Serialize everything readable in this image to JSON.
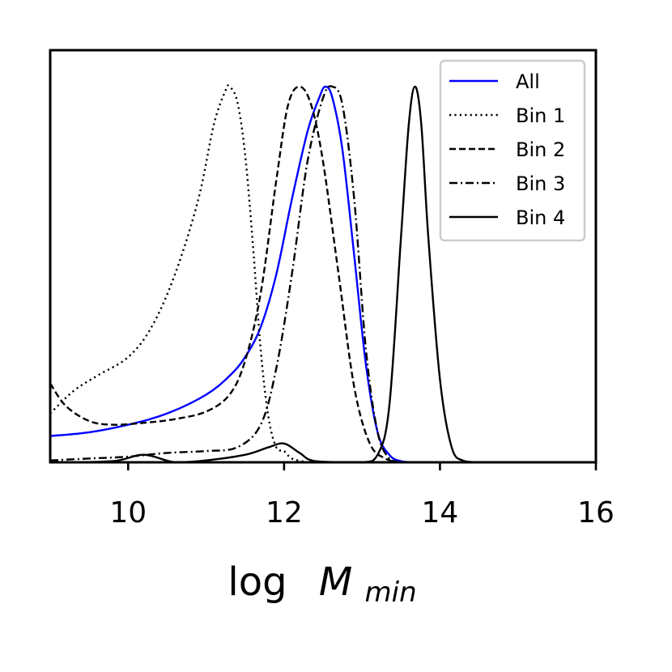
{
  "chart_data": {
    "type": "line",
    "title": "",
    "xlabel": "log",
    "xlabel_symbol": "M",
    "xlabel_subscript": "min",
    "ylabel": "",
    "xlim": [
      9,
      16
    ],
    "ylim": [
      0,
      1
    ],
    "xticks": [
      10,
      12,
      14,
      16
    ],
    "yticks_visible": false,
    "grid": false,
    "legend_position": "top-right",
    "series": [
      {
        "name": "All",
        "color": "#0000ff",
        "linestyle": "solid",
        "x": [
          9.0,
          9.5,
          10.0,
          10.5,
          11.0,
          11.3,
          11.5,
          11.7,
          11.9,
          12.1,
          12.3,
          12.45,
          12.53,
          12.62,
          12.75,
          12.9,
          13.05,
          13.2,
          13.35,
          13.5,
          13.7
        ],
        "y": [
          0.07,
          0.08,
          0.1,
          0.13,
          0.18,
          0.23,
          0.28,
          0.36,
          0.5,
          0.7,
          0.88,
          0.97,
          1.0,
          0.97,
          0.83,
          0.55,
          0.26,
          0.08,
          0.02,
          0.003,
          0.0
        ]
      },
      {
        "name": "Bin 1",
        "color": "#000000",
        "linestyle": "dotted",
        "x": [
          9.0,
          9.3,
          9.6,
          10.0,
          10.3,
          10.6,
          10.9,
          11.1,
          11.25,
          11.3,
          11.4,
          11.5,
          11.6,
          11.7,
          11.8,
          11.9,
          12.0,
          12.1,
          12.3
        ],
        "y": [
          0.13,
          0.19,
          0.23,
          0.28,
          0.36,
          0.5,
          0.7,
          0.9,
          0.99,
          1.0,
          0.96,
          0.82,
          0.58,
          0.3,
          0.12,
          0.04,
          0.03,
          0.01,
          0.0
        ]
      },
      {
        "name": "Bin 2",
        "color": "#000000",
        "linestyle": "dashed",
        "x": [
          9.0,
          9.2,
          9.5,
          9.8,
          10.2,
          10.6,
          11.0,
          11.3,
          11.5,
          11.7,
          11.9,
          12.05,
          12.2,
          12.35,
          12.5,
          12.7,
          12.9,
          13.1,
          13.3,
          13.5
        ],
        "y": [
          0.21,
          0.15,
          0.11,
          0.1,
          0.105,
          0.115,
          0.135,
          0.18,
          0.27,
          0.45,
          0.75,
          0.95,
          1.0,
          0.95,
          0.8,
          0.5,
          0.2,
          0.05,
          0.01,
          0.0
        ]
      },
      {
        "name": "Bin 3",
        "color": "#000000",
        "linestyle": "dashdot",
        "x": [
          9.0,
          9.5,
          10.0,
          10.5,
          11.0,
          11.4,
          11.7,
          11.9,
          12.1,
          12.3,
          12.5,
          12.62,
          12.75,
          12.9,
          13.05,
          13.2,
          13.35,
          13.5
        ],
        "y": [
          0.005,
          0.01,
          0.015,
          0.025,
          0.03,
          0.04,
          0.1,
          0.25,
          0.5,
          0.8,
          0.97,
          1.0,
          0.95,
          0.7,
          0.3,
          0.08,
          0.01,
          0.0
        ]
      },
      {
        "name": "Bin 4",
        "color": "#000000",
        "linestyle": "solid",
        "x": [
          9.0,
          9.8,
          10.2,
          10.6,
          11.0,
          11.5,
          11.8,
          12.0,
          12.2,
          12.4,
          13.0,
          13.2,
          13.35,
          13.5,
          13.6,
          13.68,
          13.76,
          13.85,
          14.0,
          14.15,
          14.3,
          14.5
        ],
        "y": [
          0.0,
          0.003,
          0.02,
          0.0,
          0.005,
          0.02,
          0.04,
          0.05,
          0.025,
          0.003,
          0.0,
          0.02,
          0.15,
          0.6,
          0.9,
          1.0,
          0.9,
          0.6,
          0.22,
          0.04,
          0.004,
          0.0
        ]
      }
    ]
  }
}
